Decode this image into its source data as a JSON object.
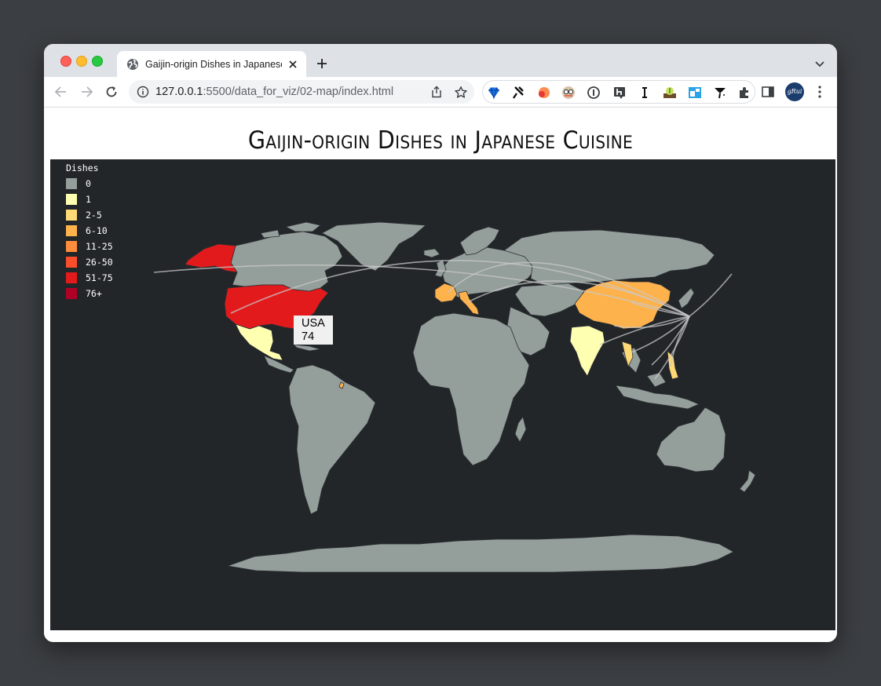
{
  "browser": {
    "tab_title": "Gaijin-origin Dishes in Japanese Cuisine",
    "url_host": "127.0.0.1",
    "url_path": ":5500/data_for_viz/02-map/index.html",
    "profile_initials": "gRui"
  },
  "page": {
    "title": "Gaijin-origin Dishes in Japanese Cuisine"
  },
  "legend": {
    "title": "Dishes",
    "items": [
      {
        "label": "0",
        "color": "#949e9a"
      },
      {
        "label": "1",
        "color": "#ffffb2"
      },
      {
        "label": "2-5",
        "color": "#fed976"
      },
      {
        "label": "6-10",
        "color": "#feb24c"
      },
      {
        "label": "11-25",
        "color": "#fd8d3c"
      },
      {
        "label": "26-50",
        "color": "#fc4e2a"
      },
      {
        "label": "51-75",
        "color": "#e31a1c"
      },
      {
        "label": "76+",
        "color": "#b10026"
      }
    ]
  },
  "tooltip": {
    "country": "USA",
    "value": "74"
  },
  "colors": {
    "map_background": "#232629",
    "land_default": "#949e9a",
    "flow_lines": "#c8c8c8"
  }
}
